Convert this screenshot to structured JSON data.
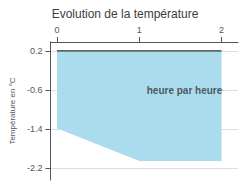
{
  "chart_data": {
    "type": "area",
    "title": "Evolution de la température",
    "ylabel": "Température en °C",
    "x": [
      0,
      1.0,
      2.0
    ],
    "series": [
      {
        "type": "area",
        "color": "#aadcee",
        "values": [
          -1.38,
          -2.05,
          -2.05
        ]
      },
      {
        "type": "line",
        "color": "#333333",
        "values": [
          0.2,
          0.2,
          0.2
        ]
      }
    ],
    "annotations": [
      {
        "text": "heure par heure",
        "x": 1.55,
        "y": -0.62
      }
    ],
    "xlim": [
      -0.08,
      2.2
    ],
    "xticks": [
      0,
      1,
      2
    ],
    "ylim": [
      -2.45,
      0.38
    ],
    "yticks": [
      0.2,
      -0.6,
      -1.4,
      -2.2
    ],
    "grid": true
  }
}
